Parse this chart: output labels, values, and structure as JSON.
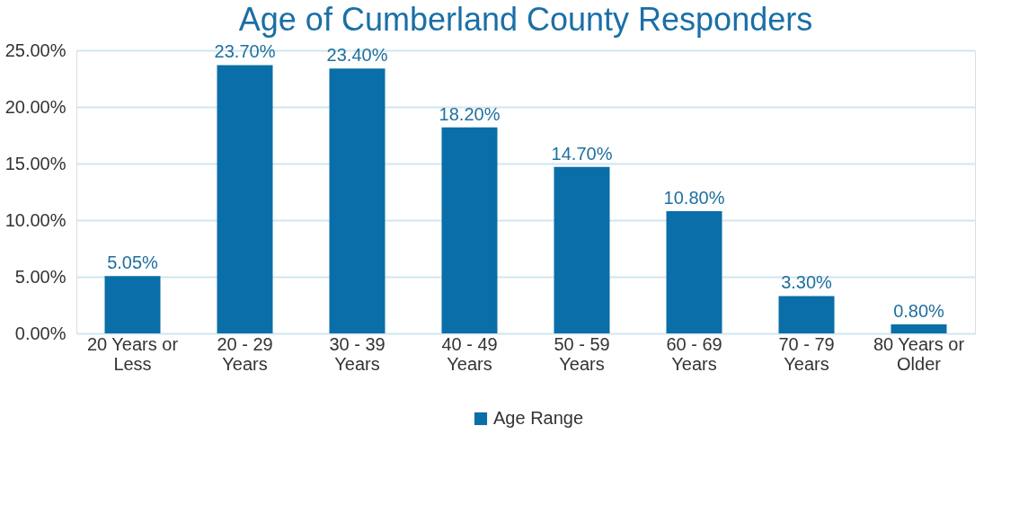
{
  "chart_data": {
    "type": "bar",
    "title": "Age of Cumberland County Responders",
    "categories": [
      "20 Years or Less",
      "20 - 29 Years",
      "30 - 39 Years",
      "40 - 49 Years",
      "50 - 59 Years",
      "60 - 69 Years",
      "70 - 79 Years",
      "80 Years or Older"
    ],
    "series": [
      {
        "name": "Age Range",
        "color": "#0a6ea8",
        "values": [
          5.05,
          23.7,
          23.4,
          18.2,
          14.7,
          10.8,
          3.3,
          0.8
        ],
        "value_labels": [
          "5.05%",
          "23.70%",
          "23.40%",
          "18.20%",
          "14.70%",
          "10.80%",
          "3.30%",
          "0.80%"
        ]
      }
    ],
    "ylim": [
      0,
      25
    ],
    "yticks": [
      {
        "value": 0,
        "label": "0.00%"
      },
      {
        "value": 5,
        "label": "5.00%"
      },
      {
        "value": 10,
        "label": "10.00%"
      },
      {
        "value": 15,
        "label": "15.00%"
      },
      {
        "value": 20,
        "label": "20.00%"
      },
      {
        "value": 25,
        "label": "25.00%"
      }
    ],
    "grid": "y",
    "legend": "bottom"
  }
}
